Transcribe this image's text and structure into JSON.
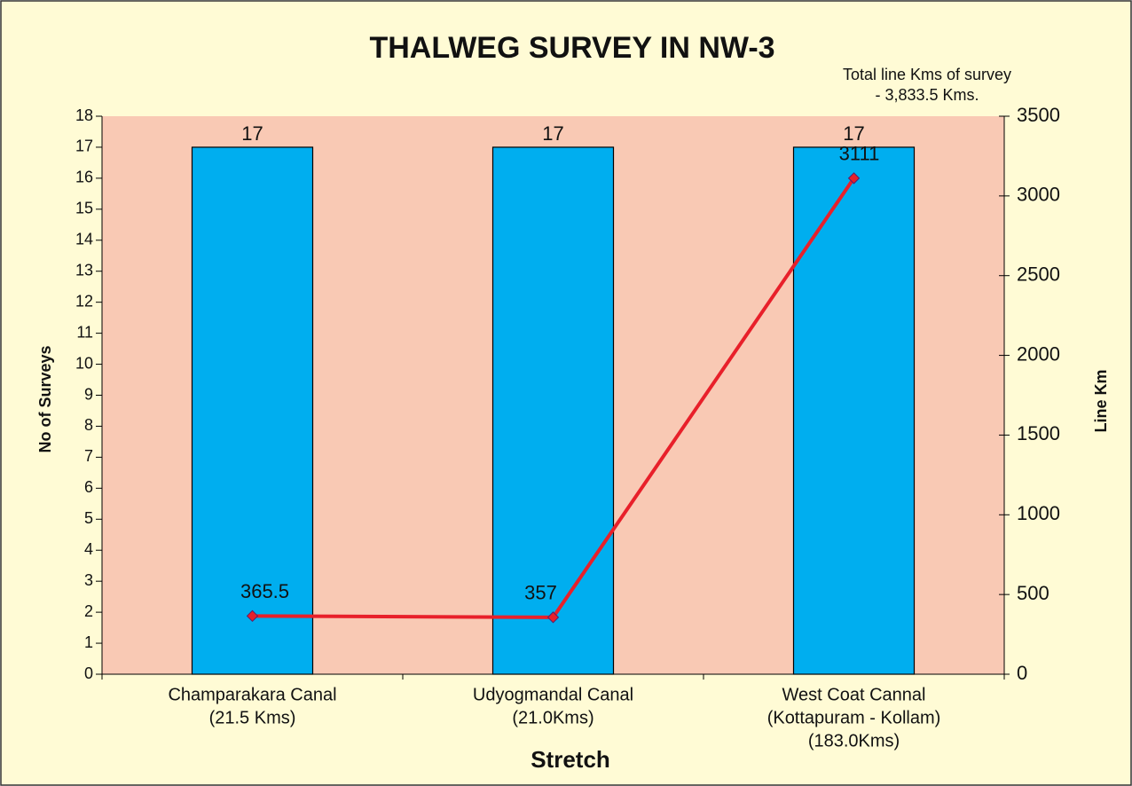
{
  "chart_data": {
    "type": "bar_line",
    "title": "THALWEG SURVEY IN NW-3",
    "annotation": [
      "Total line Kms of survey",
      "- 3,833.5 Kms."
    ],
    "x_label": "Stretch",
    "y_label": "No of Surveys",
    "y2_label": "Line Km",
    "categories": [
      [
        "Champarakara Canal",
        "(21.5 Kms)"
      ],
      [
        "Udyogmandal Canal",
        "(21.0Kms)"
      ],
      [
        "West Coat Cannal",
        "(Kottapuram - Kollam)",
        "(183.0Kms)"
      ]
    ],
    "series": [
      {
        "type": "bar",
        "color": "#00aeef",
        "values": [
          17,
          17,
          17
        ]
      },
      {
        "type": "line",
        "color": "#e8202a",
        "axis": "y2",
        "values": [
          365.5,
          357,
          3111
        ]
      }
    ],
    "ylim": [
      0,
      18
    ],
    "yticks": [
      0,
      1,
      2,
      3,
      4,
      5,
      6,
      7,
      8,
      9,
      10,
      11,
      12,
      13,
      14,
      15,
      16,
      17,
      18
    ],
    "y2lim": [
      0,
      3500
    ],
    "y2ticks": [
      0,
      500,
      1000,
      1500,
      2000,
      2500,
      3000,
      3500
    ]
  }
}
